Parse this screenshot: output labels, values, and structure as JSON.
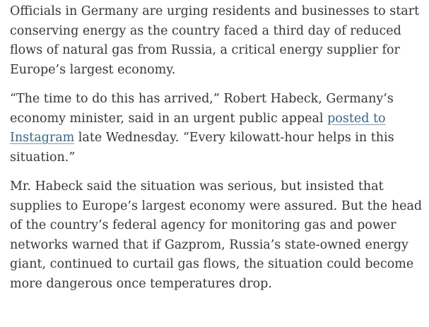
{
  "article": {
    "paragraphs": [
      {
        "text": "Officials in Germany are urging residents and businesses to start conserving energy as the country faced a third day of reduced flows of natural gas from Russia, a critical energy supplier for Europe’s largest economy."
      },
      {
        "before_link": "“The time to do this has arrived,” Robert Habeck, Germany’s economy minister, said in an urgent public appeal ",
        "link_text": "posted to Instagram",
        "after_link": " late Wednesday. “Every kilowatt-hour helps in this situation.”"
      },
      {
        "text": "Mr. Habeck said the situation was serious, but insisted that supplies to Europe’s largest economy were assured. But the head of the country’s federal agency for monitoring gas and power networks warned that if Gazprom, Russia’s state-owned energy giant, continued to curtail gas flows, the situation could become more dangerous once temperatures drop."
      }
    ]
  },
  "colors": {
    "text": "#363636",
    "link": "#326891",
    "background": "#ffffff"
  }
}
